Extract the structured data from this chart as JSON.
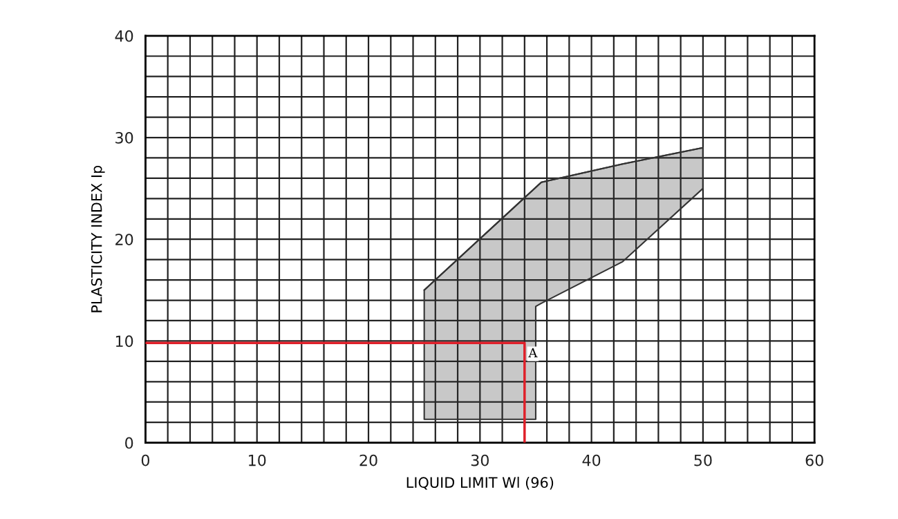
{
  "chart_data": {
    "type": "line",
    "xlabel": "LIQUID LIMIT Wl (96)",
    "ylabel": "PLASTICITY INDEX Ip",
    "series": [
      {
        "color": "#333333",
        "x": [
          25,
          35,
          35,
          35.5,
          42.8,
          50
        ],
        "values": [
          15,
          25.1,
          25.1,
          25.6,
          27.4,
          29
        ],
        "lower": [
          2.3,
          2.3,
          13.4,
          13.7,
          17.8,
          25
        ],
        "upper": [
          15,
          25.1,
          25.1,
          25.6,
          27.4,
          29
        ]
      },
      {
        "color": "#e0202a",
        "x": [
          0,
          34,
          34
        ],
        "values": [
          9.8,
          9.8,
          0
        ]
      }
    ],
    "annotations": [
      {
        "text": "A",
        "x": 34,
        "y": 9.8
      }
    ],
    "xlim": [
      0,
      60
    ],
    "ylim": [
      0,
      40
    ],
    "xticks": [
      0,
      {
        "value": 2,
        "label": null
      },
      {
        "value": 4,
        "label": null
      },
      {
        "value": 6,
        "label": null
      },
      {
        "value": 8,
        "label": null
      },
      10,
      {
        "value": 12,
        "label": null
      },
      {
        "value": 14,
        "label": null
      },
      {
        "value": 16,
        "label": null
      },
      {
        "value": 18,
        "label": null
      },
      20,
      {
        "value": 22,
        "label": null
      },
      {
        "value": 24,
        "label": null
      },
      {
        "value": 26,
        "label": null
      },
      {
        "value": 28,
        "label": null
      },
      30,
      {
        "value": 32,
        "label": null
      },
      {
        "value": 34,
        "label": null
      },
      {
        "value": 36,
        "label": null
      },
      {
        "value": 38,
        "label": null
      },
      40,
      {
        "value": 42,
        "label": null
      },
      {
        "value": 44,
        "label": null
      },
      {
        "value": 46,
        "label": null
      },
      {
        "value": 48,
        "label": null
      },
      50,
      {
        "value": 52,
        "label": null
      },
      {
        "value": 54,
        "label": null
      },
      {
        "value": 56,
        "label": null
      },
      {
        "value": 58,
        "label": null
      },
      60
    ],
    "yticks": [
      0,
      {
        "value": 2,
        "label": null
      },
      {
        "value": 4,
        "label": null
      },
      {
        "value": 6,
        "label": null
      },
      {
        "value": 8,
        "label": null
      },
      10,
      {
        "value": 12,
        "label": null
      },
      {
        "value": 14,
        "label": null
      },
      {
        "value": 16,
        "label": null
      },
      {
        "value": 18,
        "label": null
      },
      20,
      {
        "value": 22,
        "label": null
      },
      {
        "value": 24,
        "label": null
      },
      {
        "value": 26,
        "label": null
      },
      {
        "value": 28,
        "label": null
      },
      30,
      {
        "value": 32,
        "label": null
      },
      {
        "value": 34,
        "label": null
      },
      {
        "value": 36,
        "label": null
      },
      {
        "value": 38,
        "label": null
      },
      40
    ],
    "grid": true
  }
}
